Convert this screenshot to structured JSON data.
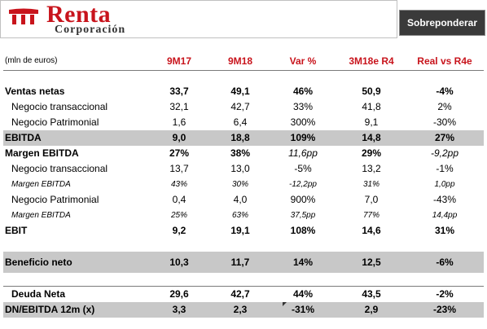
{
  "header": {
    "brand_name": "Renta",
    "brand_sub": "Corporación",
    "rating": "Sobreponderar",
    "brand_color": "#c8141c"
  },
  "table": {
    "unit_label": "(mln de euros)",
    "columns": [
      "9M17",
      "9M18",
      "Var %",
      "3M18e R4",
      "Real vs R4e"
    ],
    "rows": {
      "ventas": {
        "label": "Ventas netas",
        "values": [
          "33,7",
          "49,1",
          "46%",
          "50,9",
          "-4%"
        ]
      },
      "ventas_trans": {
        "label": "Negocio transaccional",
        "values": [
          "32,1",
          "42,7",
          "33%",
          "41,8",
          "2%"
        ]
      },
      "ventas_patr": {
        "label": "Negocio Patrimonial",
        "values": [
          "1,6",
          "6,4",
          "300%",
          "9,1",
          "-30%"
        ]
      },
      "ebitda": {
        "label": "EBITDA",
        "values": [
          "9,0",
          "18,8",
          "109%",
          "14,8",
          "27%"
        ]
      },
      "margen": {
        "label": "Margen EBITDA",
        "values": [
          "27%",
          "38%",
          "11,6pp",
          "29%",
          "-9,2pp"
        ]
      },
      "ebitda_trans": {
        "label": "Negocio transaccional",
        "values": [
          "13,7",
          "13,0",
          "-5%",
          "13,2",
          "-1%"
        ]
      },
      "margen_trans": {
        "label": "Margen EBITDA",
        "values": [
          "43%",
          "30%",
          "-12,2pp",
          "31%",
          "1,0pp"
        ]
      },
      "ebitda_patr": {
        "label": "Negocio Patrimonial",
        "values": [
          "0,4",
          "4,0",
          "900%",
          "7,0",
          "-43%"
        ]
      },
      "margen_patr": {
        "label": "Margen EBITDA",
        "values": [
          "25%",
          "63%",
          "37,5pp",
          "77%",
          "14,4pp"
        ]
      },
      "ebit": {
        "label": "EBIT",
        "values": [
          "9,2",
          "19,1",
          "108%",
          "14,6",
          "31%"
        ]
      },
      "beneficio": {
        "label": "Beneficio neto",
        "values": [
          "10,3",
          "11,7",
          "14%",
          "12,5",
          "-6%"
        ]
      },
      "deuda": {
        "label": "Deuda Neta",
        "values": [
          "29,6",
          "42,7",
          "44%",
          "43,5",
          "-2%"
        ]
      },
      "dn_ebitda": {
        "label": "DN/EBITDA 12m (x)",
        "values": [
          "3,3",
          "2,3",
          "-31%",
          "2,9",
          "-23%"
        ]
      }
    }
  }
}
